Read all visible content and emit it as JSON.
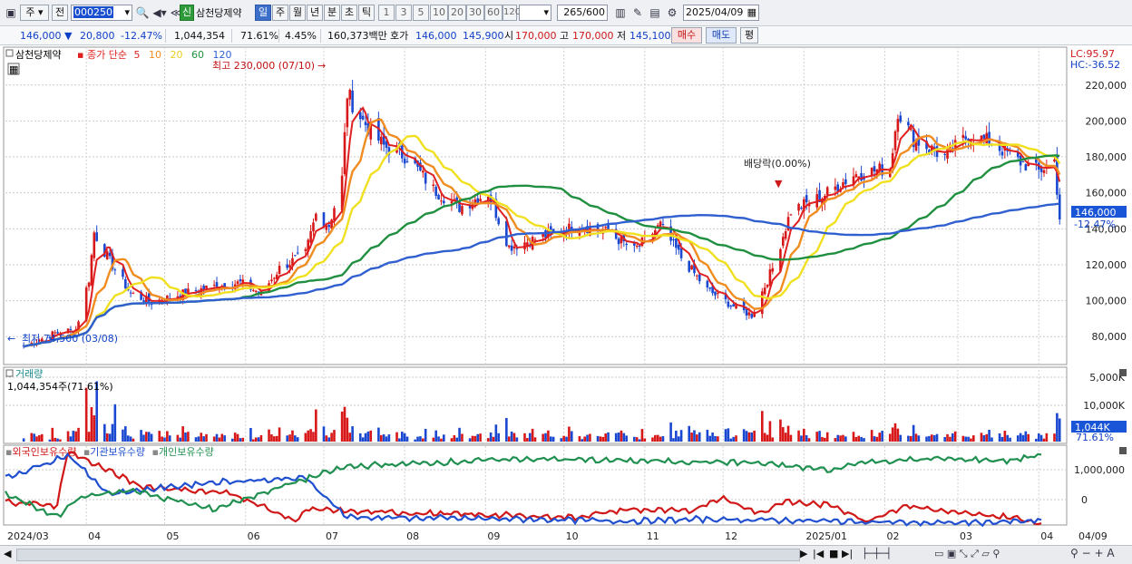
{
  "toolbar": {
    "market_label": "주",
    "prev_label": "전",
    "code": "000250",
    "type_badge": "신",
    "name": "삼천당제약",
    "periods": [
      "일",
      "주",
      "월",
      "년",
      "분",
      "초",
      "틱"
    ],
    "active_period": "일",
    "intervals": [
      "1",
      "3",
      "5",
      "10",
      "20",
      "30",
      "60",
      "120"
    ],
    "count": "265",
    "count_total": "/600",
    "date": "2025/04/09"
  },
  "info": {
    "price": "146,000",
    "change": "20,800",
    "change_pct": "-12.47%",
    "volume": "1,044,354",
    "vol_pct": "71.61%",
    "turnover": "4.45%",
    "amount": "160,373백만",
    "quote_label": "호가",
    "ask": "146,000",
    "bid": "145,900",
    "open_label": "시",
    "open": "170,000",
    "high_label": "고",
    "high": "170,000",
    "low_label": "저",
    "low": "145,100",
    "buy_button": "매수",
    "sell_button": "매도",
    "eval_button": "평"
  },
  "price_panel": {
    "name": "삼천당제약",
    "ma_label": "종가 단순",
    "ma_periods": [
      "5",
      "10",
      "20",
      "60",
      "120"
    ],
    "ma_colors": [
      "#e02020",
      "#f08c20",
      "#f0e020",
      "#209040",
      "#3060d0"
    ],
    "high_annotation": "최고 230,000 (07/10)",
    "low_annotation": "최저 74,500 (03/08)",
    "dividend_annotation": "배당락(0.00%)",
    "lc": "LC:95.97",
    "hc": "HC:-36.52",
    "current_price_tag": "146,000",
    "current_pct_tag": "-12.47%",
    "y_ticks": [
      "220,000",
      "200,000",
      "180,000",
      "160,000",
      "140,000",
      "120,000",
      "100,000",
      "80,000"
    ]
  },
  "volume_panel": {
    "title": "거래량",
    "value": "1,044,354주(71.61%)",
    "y_ticks": [
      "10,000K",
      "5,000K"
    ],
    "current_tag": "1,044K",
    "current_pct": "71.61%"
  },
  "holdings_panel": {
    "series": [
      {
        "name": "외국인보유수량",
        "color": "#d01818"
      },
      {
        "name": "기관보유수량",
        "color": "#2050d0"
      },
      {
        "name": "개인보유수량",
        "color": "#209050"
      }
    ],
    "y_ticks": [
      "1,000,000",
      "0"
    ]
  },
  "x_axis": [
    "2024/03",
    "04",
    "05",
    "06",
    "07",
    "08",
    "09",
    "10",
    "11",
    "12",
    "2025/01",
    "02",
    "03",
    "04",
    "04/09"
  ],
  "chart_data": {
    "type": "candlestick",
    "x_labels": [
      "2024/03",
      "04",
      "05",
      "06",
      "07",
      "08",
      "09",
      "10",
      "11",
      "12",
      "2025/01",
      "02",
      "03",
      "04"
    ],
    "x_label_positions_months": [
      0,
      1,
      2,
      3,
      4,
      5,
      6,
      7,
      8,
      9,
      10,
      11,
      12,
      13
    ],
    "close_path": [
      [
        "2024-03-08",
        74500
      ],
      [
        "2024-03-20",
        82000
      ],
      [
        "2024-03-28",
        84000
      ],
      [
        "2024-04-02",
        112000
      ],
      [
        "2024-04-04",
        138000
      ],
      [
        "2024-04-10",
        122000
      ],
      [
        "2024-04-18",
        104000
      ],
      [
        "2024-04-26",
        99000
      ],
      [
        "2024-05-08",
        104000
      ],
      [
        "2024-05-20",
        108000
      ],
      [
        "2024-05-30",
        110000
      ],
      [
        "2024-06-07",
        104000
      ],
      [
        "2024-06-14",
        118000
      ],
      [
        "2024-06-24",
        126000
      ],
      [
        "2024-06-28",
        148000
      ],
      [
        "2024-07-03",
        142000
      ],
      [
        "2024-07-08",
        168000
      ],
      [
        "2024-07-10",
        215000
      ],
      [
        "2024-07-16",
        200000
      ],
      [
        "2024-07-24",
        186000
      ],
      [
        "2024-08-02",
        180000
      ],
      [
        "2024-08-12",
        162000
      ],
      [
        "2024-08-22",
        152000
      ],
      [
        "2024-09-02",
        160000
      ],
      [
        "2024-09-10",
        130000
      ],
      [
        "2024-09-24",
        136000
      ],
      [
        "2024-10-07",
        142000
      ],
      [
        "2024-10-18",
        138000
      ],
      [
        "2024-10-28",
        128000
      ],
      [
        "2024-11-07",
        142000
      ],
      [
        "2024-11-15",
        124000
      ],
      [
        "2024-11-25",
        106000
      ],
      [
        "2024-12-06",
        96000
      ],
      [
        "2024-12-12",
        92000
      ],
      [
        "2024-12-20",
        118000
      ],
      [
        "2024-12-27",
        150000
      ],
      [
        "2025-01-08",
        158000
      ],
      [
        "2025-01-20",
        170000
      ],
      [
        "2025-02-03",
        174000
      ],
      [
        "2025-02-06",
        206000
      ],
      [
        "2025-02-12",
        190000
      ],
      [
        "2025-02-24",
        180000
      ],
      [
        "2025-03-05",
        192000
      ],
      [
        "2025-03-14",
        188000
      ],
      [
        "2025-03-24",
        178000
      ],
      [
        "2025-04-01",
        172000
      ],
      [
        "2025-04-07",
        178000
      ],
      [
        "2025-04-09",
        146000
      ]
    ],
    "price_range": [
      68000,
      232000
    ],
    "volume_range_k": [
      0,
      12000
    ],
    "holdings_range": [
      -500000,
      1500000
    ]
  }
}
